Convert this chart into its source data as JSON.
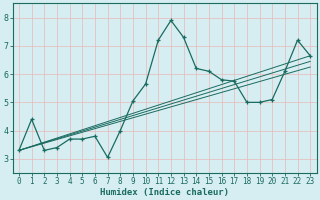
{
  "xlabel": "Humidex (Indice chaleur)",
  "bg_color": "#d6eef2",
  "grid_color": "#c8e0e8",
  "line_color": "#1a6b60",
  "xlim": [
    -0.5,
    23.5
  ],
  "ylim": [
    2.5,
    8.5
  ],
  "xticks": [
    0,
    1,
    2,
    3,
    4,
    5,
    6,
    7,
    8,
    9,
    10,
    11,
    12,
    13,
    14,
    15,
    16,
    17,
    18,
    19,
    20,
    21,
    22,
    23
  ],
  "yticks": [
    3,
    4,
    5,
    6,
    7,
    8
  ],
  "main_series": {
    "x": [
      0,
      1,
      2,
      3,
      4,
      5,
      6,
      7,
      8,
      9,
      10,
      11,
      12,
      13,
      14,
      15,
      16,
      17,
      18,
      19,
      20,
      21,
      22,
      23
    ],
    "y": [
      3.3,
      4.4,
      3.3,
      3.4,
      3.7,
      3.7,
      3.8,
      3.05,
      4.0,
      5.05,
      5.65,
      7.2,
      7.9,
      7.3,
      6.2,
      6.1,
      5.8,
      5.75,
      5.0,
      5.0,
      5.1,
      6.1,
      7.2,
      6.65
    ]
  },
  "trend_lines": [
    {
      "x": [
        0,
        23
      ],
      "y": [
        3.3,
        6.65
      ]
    },
    {
      "x": [
        0,
        23
      ],
      "y": [
        3.3,
        6.45
      ]
    },
    {
      "x": [
        0,
        23
      ],
      "y": [
        3.3,
        6.25
      ]
    }
  ]
}
